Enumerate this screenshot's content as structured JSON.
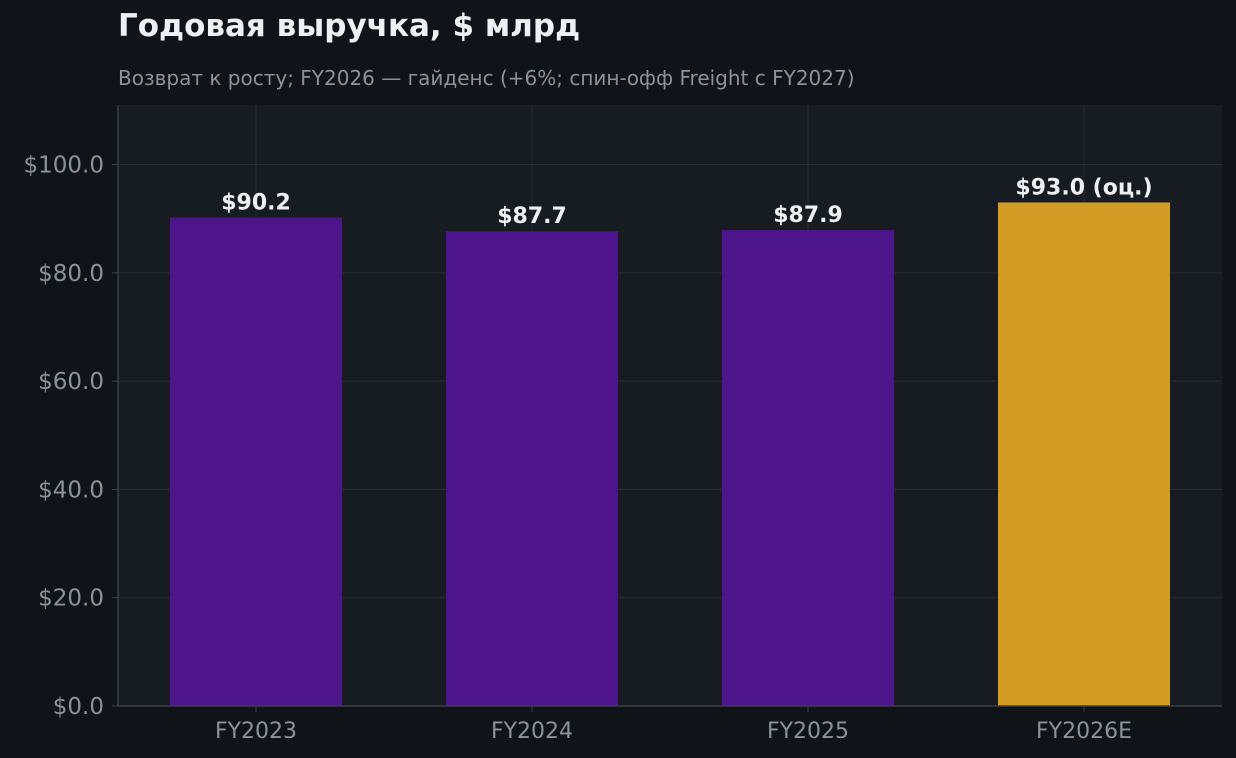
{
  "title": "Годовая выручка, $ млрд",
  "subtitle": "Возврат к росту; FY2026 — гайденс (+6%; спин-офф Freight с FY2027)",
  "colors": {
    "page_background": "#101418",
    "plot_background": "#171b22",
    "grid": "#272c35",
    "axis": "#3a3f48",
    "tick_label": "#8b929c",
    "data_label": "#eef0f3",
    "actual": "#4e148c",
    "estimate": "#d39a24"
  },
  "chart_data": {
    "type": "bar",
    "categories": [
      "FY2023",
      "FY2024",
      "FY2025",
      "FY2026E"
    ],
    "values": [
      90.2,
      87.7,
      87.9,
      93.0
    ],
    "data_labels": [
      "$90.2",
      "$87.7",
      "$87.9",
      "$93.0 (оц.)"
    ],
    "bar_kind": [
      "actual",
      "actual",
      "actual",
      "estimate"
    ],
    "yticks": [
      0,
      20,
      40,
      60,
      80,
      100
    ],
    "ytick_labels": [
      "$0.0",
      "$20.0",
      "$40.0",
      "$60.0",
      "$80.0",
      "$100.0"
    ],
    "ylim": [
      0,
      111
    ],
    "grid": true,
    "xlabel": "",
    "ylabel": ""
  }
}
